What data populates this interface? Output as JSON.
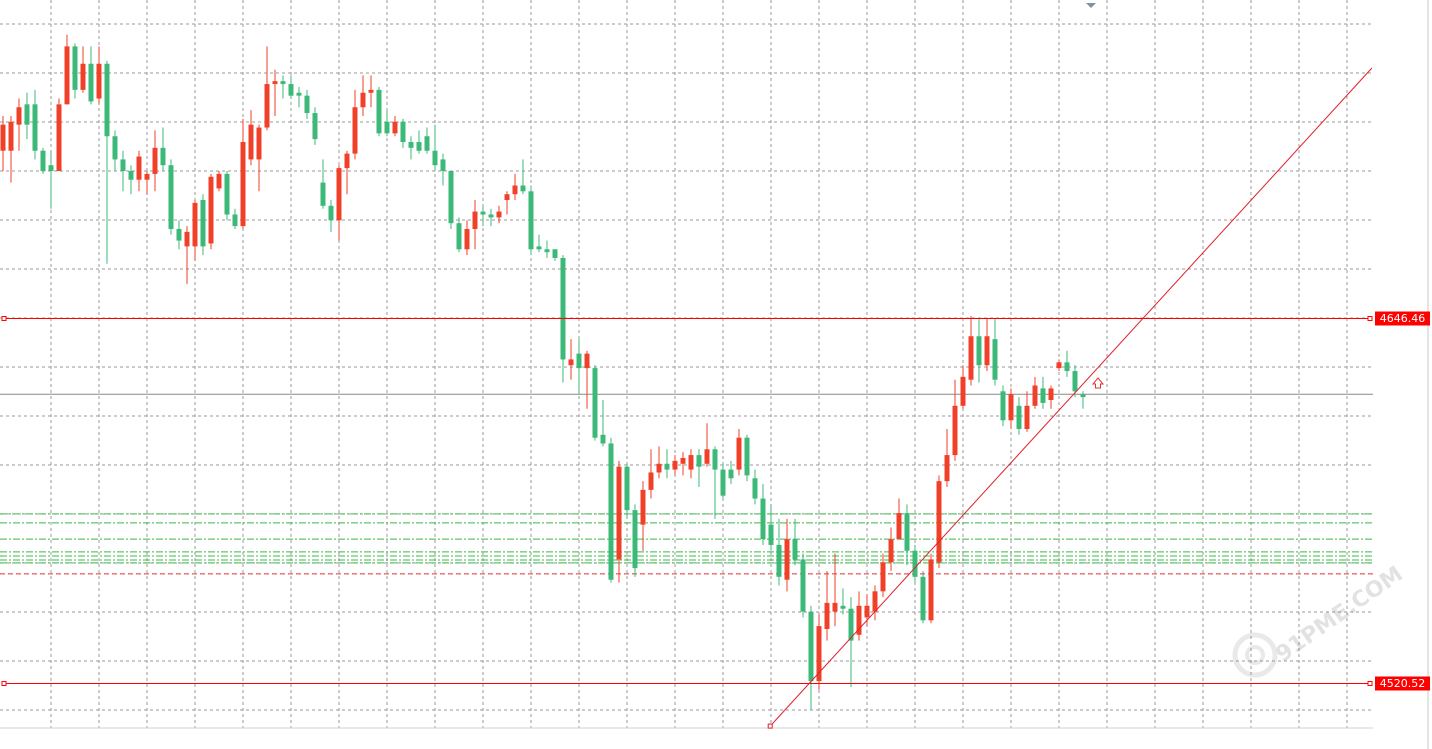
{
  "chart_data": {
    "type": "candlestick",
    "up_color": "#f0402a",
    "down_color": "#3cb878",
    "ylim": [
      4497.6,
      4756
    ],
    "grid": true,
    "open": [
      4704,
      4704,
      4713,
      4720,
      4720,
      4704,
      4699,
      4697,
      4720,
      4740,
      4725,
      4734,
      4722,
      4734,
      4709,
      4701,
      4697,
      4694,
      4694,
      4696,
      4705,
      4699,
      4677,
      4671,
      4671,
      4687,
      4672,
      4691,
      4696,
      4682,
      4678,
      4701,
      4701,
      4712,
      4727,
      4728,
      4727,
      4724,
      4723,
      4717,
      4693,
      4685,
      4680,
      4698,
      4703,
      4719,
      4724,
      4725,
      4714,
      4710,
      4714,
      4707,
      4707,
      4709,
      4704,
      4701,
      4697,
      4679,
      4670,
      4677,
      4683,
      4682,
      4681,
      4687,
      4689,
      4692,
      4690,
      4671,
      4670,
      4670,
      4667,
      4630,
      4634,
      4629,
      4629,
      4606,
      4603,
      4563,
      4595,
      4580,
      4575,
      4587,
      4593,
      4596,
      4594,
      4596,
      4594,
      4599,
      4596,
      4601,
      4594,
      4594,
      4594,
      4605,
      4591,
      4584,
      4575,
      4568,
      4556,
      4570,
      4563,
      4545,
      4521,
      4539,
      4545,
      4547,
      4546,
      4537,
      4543,
      4545,
      4552,
      4562,
      4570,
      4579,
      4566,
      4557,
      4542,
      4562,
      4590,
      4599,
      4616,
      4625,
      4640,
      4630,
      4639,
      4621,
      4611,
      4616,
      4608,
      4616,
      4622,
      4618,
      4629,
      4631,
      4628,
      4620
    ],
    "high": [
      4716,
      4716,
      4722,
      4724,
      4725,
      4705,
      4704,
      4722,
      4744,
      4741,
      4740,
      4740,
      4740,
      4735,
      4711,
      4704,
      4699,
      4704,
      4697,
      4711,
      4712,
      4701,
      4680,
      4678,
      4687,
      4689,
      4696,
      4697,
      4697,
      4684,
      4715,
      4718,
      4713,
      4740,
      4732,
      4730,
      4730,
      4726,
      4725,
      4719,
      4701,
      4687,
      4699,
      4704,
      4725,
      4730,
      4730,
      4726,
      4718,
      4716,
      4715,
      4709,
      4711,
      4712,
      4713,
      4703,
      4697,
      4681,
      4680,
      4687,
      4685,
      4684,
      4685,
      4690,
      4696,
      4701,
      4692,
      4675,
      4673,
      4670,
      4668,
      4639,
      4639,
      4635,
      4630,
      4618,
      4605,
      4597,
      4596,
      4582,
      4590,
      4601,
      4602,
      4601,
      4599,
      4600,
      4601,
      4601,
      4610,
      4602,
      4596,
      4597,
      4608,
      4606,
      4594,
      4589,
      4582,
      4577,
      4577,
      4577,
      4565,
      4547,
      4544,
      4559,
      4565,
      4553,
      4550,
      4552,
      4551,
      4554,
      4565,
      4574,
      4584,
      4582,
      4568,
      4559,
      4565,
      4592,
      4608,
      4625,
      4630,
      4647,
      4646,
      4646,
      4646,
      4623,
      4622,
      4619,
      4621,
      4626,
      4626,
      4623,
      4632,
      4635,
      4630,
      4621
    ],
    "low": [
      4697,
      4693,
      4704,
      4708,
      4701,
      4696,
      4684,
      4697,
      4720,
      4722,
      4724,
      4720,
      4720,
      4665,
      4697,
      4690,
      4689,
      4690,
      4689,
      4690,
      4697,
      4675,
      4670,
      4658,
      4666,
      4668,
      4670,
      4690,
      4680,
      4677,
      4677,
      4699,
      4690,
      4711,
      4716,
      4722,
      4722,
      4719,
      4715,
      4706,
      4684,
      4676,
      4673,
      4689,
      4701,
      4716,
      4719,
      4709,
      4709,
      4709,
      4705,
      4701,
      4703,
      4703,
      4697,
      4692,
      4677,
      4669,
      4668,
      4670,
      4678,
      4678,
      4679,
      4682,
      4687,
      4689,
      4668,
      4669,
      4667,
      4666,
      4624,
      4625,
      4620,
      4615,
      4604,
      4602,
      4555,
      4555,
      4577,
      4557,
      4566,
      4584,
      4591,
      4591,
      4592,
      4592,
      4591,
      4588,
      4595,
      4577,
      4584,
      4589,
      4592,
      4590,
      4582,
      4568,
      4566,
      4554,
      4552,
      4561,
      4543,
      4511,
      4518,
      4535,
      4540,
      4544,
      4519,
      4535,
      4540,
      4542,
      4550,
      4559,
      4570,
      4561,
      4555,
      4541,
      4541,
      4560,
      4588,
      4597,
      4615,
      4623,
      4624,
      4628,
      4623,
      4609,
      4608,
      4606,
      4607,
      4615,
      4615,
      4615,
      4628,
      4626,
      4619,
      4615
    ],
    "close": [
      4713,
      4714,
      4719,
      4713,
      4704,
      4697,
      4697,
      4720,
      4740,
      4725,
      4734,
      4721,
      4734,
      4709,
      4701,
      4697,
      4694,
      4702,
      4696,
      4705,
      4699,
      4677,
      4673,
      4676,
      4686,
      4671,
      4695,
      4696,
      4682,
      4678,
      4707,
      4713,
      4712,
      4727,
      4728,
      4727,
      4723,
      4723,
      4717,
      4708,
      4685,
      4680,
      4698,
      4703,
      4719,
      4724,
      4725,
      4710,
      4710,
      4714,
      4707,
      4705,
      4704,
      4704,
      4699,
      4697,
      4679,
      4670,
      4677,
      4683,
      4682,
      4681,
      4683,
      4689,
      4692,
      4690,
      4670,
      4670,
      4669,
      4667,
      4632,
      4632,
      4629,
      4634,
      4605,
      4603,
      4556,
      4595,
      4580,
      4560,
      4587,
      4593,
      4596,
      4594,
      4597,
      4598,
      4599,
      4595,
      4601,
      4594,
      4585,
      4591,
      4605,
      4592,
      4584,
      4570,
      4568,
      4557,
      4570,
      4563,
      4545,
      4521,
      4540,
      4548,
      4548,
      4546,
      4535,
      4547,
      4547,
      4552,
      4562,
      4570,
      4579,
      4566,
      4557,
      4542,
      4563,
      4590,
      4599,
      4616,
      4626,
      4640,
      4630,
      4640,
      4625,
      4611,
      4620,
      4608,
      4616,
      4623,
      4617,
      4622,
      4631,
      4628,
      4621,
      4619
    ],
    "hlines": [
      4646.46,
      4520.52
    ],
    "hline_color": "#ff0000",
    "price_line": 4620,
    "levels": [
      {
        "value": 4578.7,
        "color": "#3cb84a"
      },
      {
        "value": 4575.6,
        "color": "#3cb84a"
      },
      {
        "value": 4570.0,
        "color": "#3cb84a"
      },
      {
        "value": 4565.6,
        "color": "#3cb84a"
      },
      {
        "value": 4564.2,
        "color": "#3cb84a"
      },
      {
        "value": 4562.8,
        "color": "#3cb84a"
      },
      {
        "value": 4561.8,
        "color": "#3cb84a"
      },
      {
        "value": 4558.0,
        "color": "#e03030"
      }
    ],
    "trendline": {
      "x": [
        95.9,
        171.1
      ],
      "values": [
        4505.5,
        4732.5
      ],
      "color": "#e0202a"
    },
    "watermark": "91PME.COM"
  }
}
